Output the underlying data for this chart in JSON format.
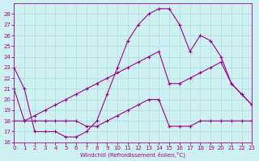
{
  "xlabel": "Windchill (Refroidissement éolien,°C)",
  "background_color": "#cff0f0",
  "grid_color": "#aadddd",
  "line_color": "#990099",
  "xlim": [
    0,
    23
  ],
  "ylim": [
    16,
    29
  ],
  "yticks": [
    16,
    17,
    18,
    19,
    20,
    21,
    22,
    23,
    24,
    25,
    26,
    27,
    28
  ],
  "xticks": [
    0,
    1,
    2,
    3,
    4,
    5,
    6,
    7,
    8,
    9,
    10,
    11,
    12,
    13,
    14,
    15,
    16,
    17,
    18,
    19,
    20,
    21,
    22,
    23
  ],
  "line1_x": [
    0,
    1,
    2,
    3,
    4,
    5,
    6,
    7,
    8,
    9,
    10,
    11,
    12,
    13,
    14,
    15,
    16,
    17,
    18,
    19,
    20,
    21,
    22,
    23
  ],
  "line1_y": [
    23,
    21,
    17,
    17,
    17,
    16.5,
    16.5,
    17,
    18,
    20.5,
    23,
    25.5,
    27,
    28,
    28.5,
    28.5,
    27,
    24.5,
    26,
    25.5,
    24,
    21.5,
    20.5,
    19.5
  ],
  "line2_x": [
    0,
    1,
    2,
    3,
    4,
    5,
    6,
    7,
    8,
    9,
    10,
    11,
    12,
    13,
    14,
    15,
    16,
    17,
    18,
    19,
    20,
    21,
    22,
    23
  ],
  "line2_y": [
    21,
    18,
    18.5,
    19,
    19.5,
    20,
    20.5,
    21,
    21.5,
    22,
    22.5,
    23,
    23.5,
    24,
    24.5,
    21.5,
    21.5,
    22,
    22.5,
    23,
    23.5,
    21.5,
    20.5,
    19.5
  ],
  "line3_x": [
    0,
    1,
    2,
    3,
    4,
    5,
    6,
    7,
    8,
    9,
    10,
    11,
    12,
    13,
    14,
    15,
    16,
    17,
    18,
    19,
    20,
    21,
    22,
    23
  ],
  "line3_y": [
    18,
    18,
    18,
    18,
    18,
    18,
    18,
    17.5,
    17.5,
    18,
    18.5,
    19,
    19.5,
    20,
    20,
    17.5,
    17.5,
    17.5,
    18,
    18,
    18,
    18,
    18,
    18
  ]
}
